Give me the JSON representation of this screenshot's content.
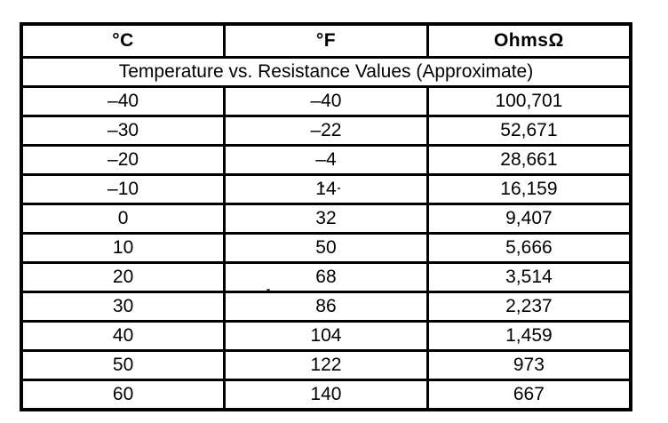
{
  "table": {
    "columns": [
      "°C",
      "°F",
      "OhmsΩ"
    ],
    "title": "Temperature vs. Resistance Values (Approximate)",
    "rows": [
      [
        "–40",
        "–40",
        "100,701"
      ],
      [
        "–30",
        "–22",
        "52,671"
      ],
      [
        "–20",
        "–4",
        "28,661"
      ],
      [
        "–10",
        "14",
        "16,159"
      ],
      [
        "0",
        "32",
        "9,407"
      ],
      [
        "10",
        "50",
        "5,666"
      ],
      [
        "20",
        "68",
        "3,514"
      ],
      [
        "30",
        "86",
        "2,237"
      ],
      [
        "40",
        "104",
        "1,459"
      ],
      [
        "50",
        "122",
        "973"
      ],
      [
        "60",
        "140",
        "667"
      ]
    ]
  },
  "colors": {
    "border": "#000000",
    "background": "#ffffff",
    "text": "#000000"
  }
}
